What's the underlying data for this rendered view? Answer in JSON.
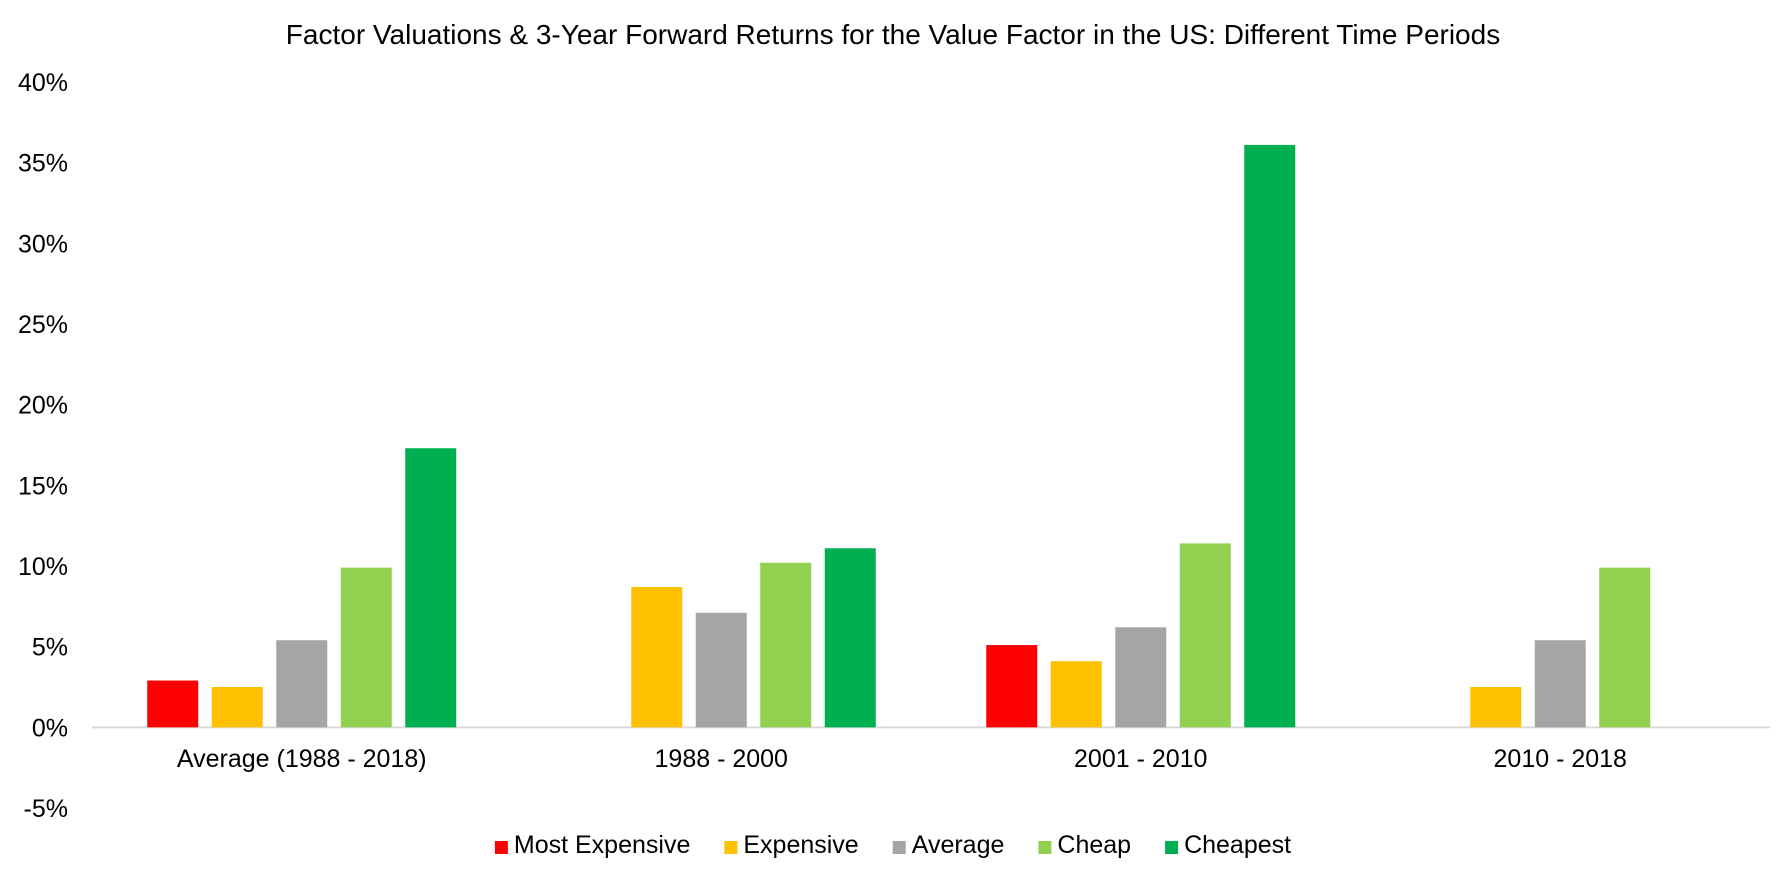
{
  "chart_data": {
    "type": "bar",
    "title": "Factor Valuations & 3-Year Forward Returns for the Value Factor in the US: Different Time Periods",
    "xlabel": "",
    "ylabel": "",
    "categories": [
      "Average (1988 - 2018)",
      "1988 - 2000",
      "2001 - 2010",
      "2010 - 2018"
    ],
    "series": [
      {
        "name": "Most Expensive",
        "color": "#FF0000",
        "values": [
          0.029,
          null,
          0.051,
          null
        ]
      },
      {
        "name": "Expensive",
        "color": "#FFC000",
        "values": [
          0.025,
          0.087,
          0.041,
          0.025
        ]
      },
      {
        "name": "Average",
        "color": "#A5A5A5",
        "values": [
          0.054,
          0.071,
          0.062,
          0.054
        ]
      },
      {
        "name": "Cheap",
        "color": "#92D050",
        "values": [
          0.099,
          0.102,
          0.114,
          0.099
        ]
      },
      {
        "name": "Cheapest",
        "color": "#00B050",
        "values": [
          0.173,
          0.111,
          0.361,
          null
        ]
      }
    ],
    "ylim": [
      -0.05,
      0.4
    ],
    "yticks": [
      -0.05,
      0.0,
      0.05,
      0.1,
      0.15,
      0.2,
      0.25,
      0.3,
      0.35,
      0.4
    ],
    "ytick_labels": [
      "-5%",
      "0%",
      "5%",
      "10%",
      "15%",
      "20%",
      "25%",
      "30%",
      "35%",
      "40%"
    ],
    "grid": false,
    "legend_position": "bottom-center"
  }
}
